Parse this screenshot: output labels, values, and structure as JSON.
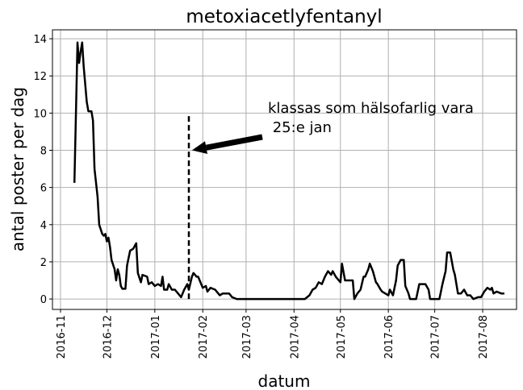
{
  "chart_data": {
    "type": "line",
    "title": "metoxiacetlyfentanyl",
    "xlabel": "datum",
    "ylabel": "antal poster per dag",
    "xlim": [
      -5.2,
      294.9
    ],
    "ylim": [
      -0.56,
      14.48
    ],
    "xticks": [
      {
        "value": 0,
        "label": "2016-11"
      },
      {
        "value": 30,
        "label": "2016-12"
      },
      {
        "value": 61,
        "label": "2017-01"
      },
      {
        "value": 92,
        "label": "2017-02"
      },
      {
        "value": 120,
        "label": "2017-03"
      },
      {
        "value": 151,
        "label": "2017-04"
      },
      {
        "value": 181,
        "label": "2017-05"
      },
      {
        "value": 212,
        "label": "2017-06"
      },
      {
        "value": 242,
        "label": "2017-07"
      },
      {
        "value": 273,
        "label": "2017-08"
      }
    ],
    "yticks": [
      0,
      2,
      4,
      6,
      8,
      10,
      12,
      14
    ],
    "grid": true,
    "series": [
      {
        "color": "#000000",
        "x": [
          9,
          10,
          11,
          12,
          13,
          14,
          15,
          17,
          18,
          20,
          21,
          22,
          24,
          25,
          27,
          28,
          29,
          30,
          31,
          32,
          33,
          35,
          36,
          37,
          38,
          39,
          40,
          42,
          43,
          44,
          45,
          47,
          49,
          50,
          52,
          53,
          56,
          57,
          59,
          61,
          63,
          65,
          66,
          67,
          69,
          70,
          72,
          74,
          76,
          78,
          80,
          82,
          83,
          85,
          86,
          88,
          89,
          91,
          92,
          94,
          95,
          97,
          100,
          102,
          103,
          105,
          109,
          111,
          114,
          158,
          161,
          163,
          165,
          167,
          169,
          171,
          173,
          175,
          176,
          178,
          179,
          181,
          182,
          184,
          187,
          189,
          190,
          192,
          194,
          196,
          197,
          199,
          200,
          202,
          204,
          205,
          207,
          208,
          210,
          212,
          213,
          215,
          217,
          218,
          220,
          222,
          223,
          225,
          226,
          230,
          232,
          236,
          238,
          239,
          245,
          247,
          249,
          250,
          252,
          254,
          255,
          257,
          259,
          261,
          263,
          265,
          267,
          270,
          272,
          274,
          276,
          278,
          279,
          280,
          282,
          285,
          287
        ],
        "values": [
          6.25,
          10,
          13.8,
          12.7,
          13.3,
          13.8,
          12.5,
          10.6,
          10.1,
          10.1,
          9.6,
          7,
          5.5,
          4,
          3.5,
          3.4,
          3.5,
          3.1,
          3.3,
          2.8,
          2.1,
          1.6,
          1.0,
          1.6,
          1.3,
          0.7,
          0.55,
          0.55,
          1.8,
          2.2,
          2.6,
          2.7,
          3.0,
          1.4,
          0.9,
          1.3,
          1.2,
          0.8,
          0.9,
          0.7,
          0.8,
          0.7,
          1.2,
          0.5,
          0.5,
          0.8,
          0.5,
          0.5,
          0.3,
          0.1,
          0.5,
          0.8,
          0.5,
          1.2,
          1.4,
          1.2,
          1.2,
          0.8,
          0.6,
          0.7,
          0.4,
          0.6,
          0.5,
          0.3,
          0.2,
          0.3,
          0.3,
          0.1,
          0,
          0,
          0.2,
          0.5,
          0.6,
          0.9,
          0.8,
          1.2,
          1.5,
          1.3,
          1.5,
          1.2,
          1.1,
          0.9,
          1.9,
          1.0,
          1.0,
          1.0,
          0,
          0.3,
          0.5,
          1.2,
          1.2,
          1.6,
          1.9,
          1.5,
          0.9,
          0.8,
          0.5,
          0.4,
          0.3,
          0.2,
          0.5,
          0.2,
          1.0,
          1.8,
          2.1,
          2.1,
          0.7,
          0.3,
          0,
          0,
          0.8,
          0.8,
          0.5,
          0,
          0,
          0.8,
          1.5,
          2.5,
          2.5,
          1.6,
          1.3,
          0.3,
          0.3,
          0.5,
          0.2,
          0.2,
          0,
          0.1,
          0.1,
          0.4,
          0.6,
          0.5,
          0.6,
          0.3,
          0.4,
          0.3,
          0.3
        ]
      }
    ],
    "vline": {
      "x": 83,
      "ymax": 10
    },
    "annotation": {
      "lines": [
        "klassas som hälsofarlig vara",
        " 25:e jan"
      ],
      "xy": [
        85,
        8
      ]
    }
  }
}
